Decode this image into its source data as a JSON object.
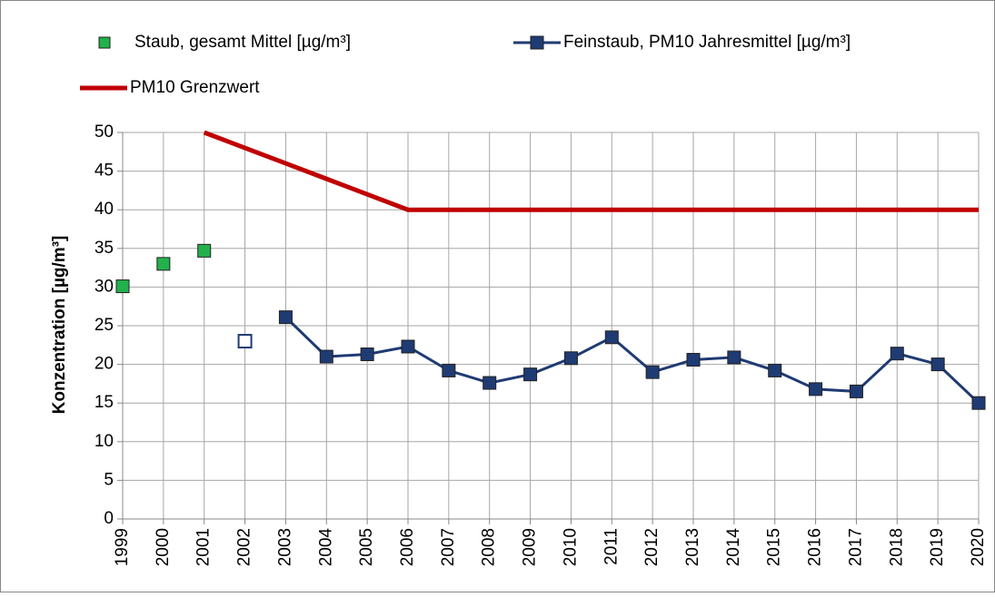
{
  "chart_data": {
    "type": "line",
    "categories": [
      "1999",
      "2000",
      "2001",
      "2002",
      "2003",
      "2004",
      "2005",
      "2006",
      "2007",
      "2008",
      "2009",
      "2010",
      "2011",
      "2012",
      "2013",
      "2014",
      "2015",
      "2016",
      "2017",
      "2018",
      "2019",
      "2020"
    ],
    "series": [
      {
        "name": "Staub, gesamt Mittel [µg/m³]",
        "color": "#22b14c",
        "line": false,
        "marker": "square",
        "values": [
          30.1,
          33,
          34.7,
          null,
          null,
          null,
          null,
          null,
          null,
          null,
          null,
          null,
          null,
          null,
          null,
          null,
          null,
          null,
          null,
          null,
          null,
          null
        ]
      },
      {
        "name": "Feinstaub, PM10 Jahresmittel [µg/m³]",
        "color": "#1f3b73",
        "line": true,
        "marker": "square",
        "open_marker_indices": [
          3
        ],
        "values": [
          null,
          null,
          null,
          23,
          26.1,
          21,
          21.3,
          22.3,
          19.2,
          17.6,
          18.7,
          20.8,
          23.5,
          19,
          20.6,
          20.9,
          19.2,
          16.8,
          16.5,
          21.4,
          20,
          15
        ]
      },
      {
        "name": "PM10 Grenzwert",
        "color": "#c00000",
        "line": true,
        "marker": null,
        "values": [
          null,
          null,
          50,
          48,
          46,
          44,
          42,
          40,
          40,
          40,
          40,
          40,
          40,
          40,
          40,
          40,
          40,
          40,
          40,
          40,
          40,
          40
        ]
      }
    ],
    "ylabel": "Konzentration [µg/m³]",
    "ylim": [
      0,
      50
    ],
    "yticks": [
      0,
      5,
      10,
      15,
      20,
      25,
      30,
      35,
      40,
      45,
      50
    ],
    "grid": true
  }
}
